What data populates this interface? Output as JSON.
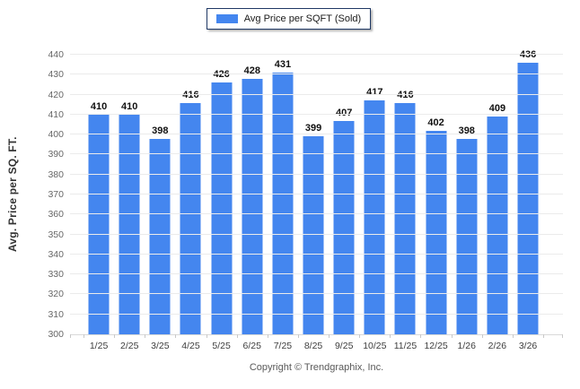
{
  "legend": {
    "label": "Avg Price per SQFT (Sold)",
    "swatch_color": "#4486ef"
  },
  "footer": {
    "copyright": "Copyright © Trendgraphix, Inc."
  },
  "chart_data": {
    "type": "bar",
    "title": "",
    "categories": [
      "1/25",
      "2/25",
      "3/25",
      "4/25",
      "5/25",
      "6/25",
      "7/25",
      "8/25",
      "9/25",
      "10/25",
      "11/25",
      "12/25",
      "1/26",
      "2/26",
      "3/26"
    ],
    "values": [
      410,
      410,
      398,
      416,
      426,
      428,
      431,
      399,
      407,
      417,
      416,
      402,
      398,
      409,
      436
    ],
    "series_name": "Avg Price per SQFT (Sold)",
    "xlabel": "",
    "ylabel": "Avg. Price per SQ. FT.",
    "ylim": [
      300,
      440
    ],
    "ytick_step": 10,
    "bar_color": "#4486ef",
    "grid": true,
    "legend_position": "top-center",
    "value_labels": true
  }
}
